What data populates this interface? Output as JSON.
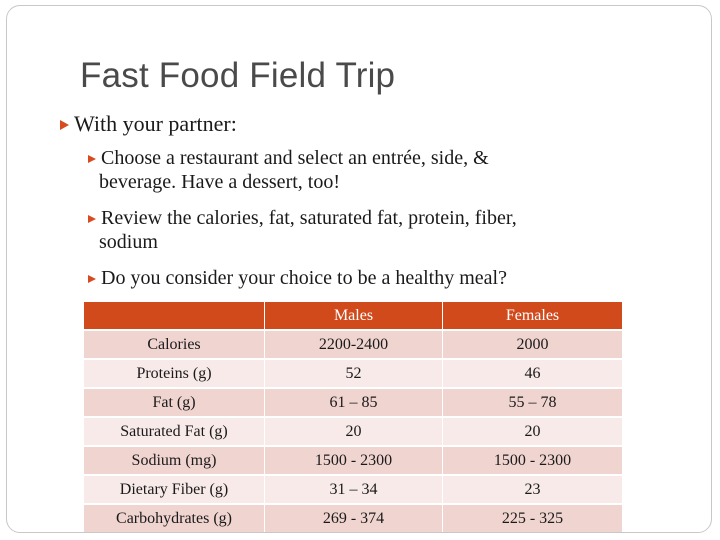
{
  "slide": {
    "title": "Fast Food Field Trip",
    "accent_color": "#d04a1c",
    "bullets": {
      "level1": "With your partner:",
      "level2": [
        {
          "line1": "Choose a restaurant and select an entrée, side, &",
          "line2": "beverage. Have a dessert, too!"
        },
        {
          "line1": "Review the calories, fat, saturated fat, protein, fiber,",
          "line2": "sodium"
        },
        {
          "line1": "Do you consider your choice to be a healthy meal?"
        }
      ]
    }
  },
  "table": {
    "headers": [
      "",
      "Males",
      "Females"
    ],
    "rows": [
      [
        "Calories",
        "2200-2400",
        "2000"
      ],
      [
        "Proteins (g)",
        "52",
        "46"
      ],
      [
        "Fat (g)",
        "61 – 85",
        "55 – 78"
      ],
      [
        "Saturated Fat (g)",
        "20",
        "20"
      ],
      [
        "Sodium (mg)",
        "1500 - 2300",
        "1500 - 2300"
      ],
      [
        "Dietary Fiber (g)",
        "31 – 34",
        "23"
      ],
      [
        "Carbohydrates (g)",
        "269 - 374",
        "225 - 325"
      ]
    ]
  }
}
